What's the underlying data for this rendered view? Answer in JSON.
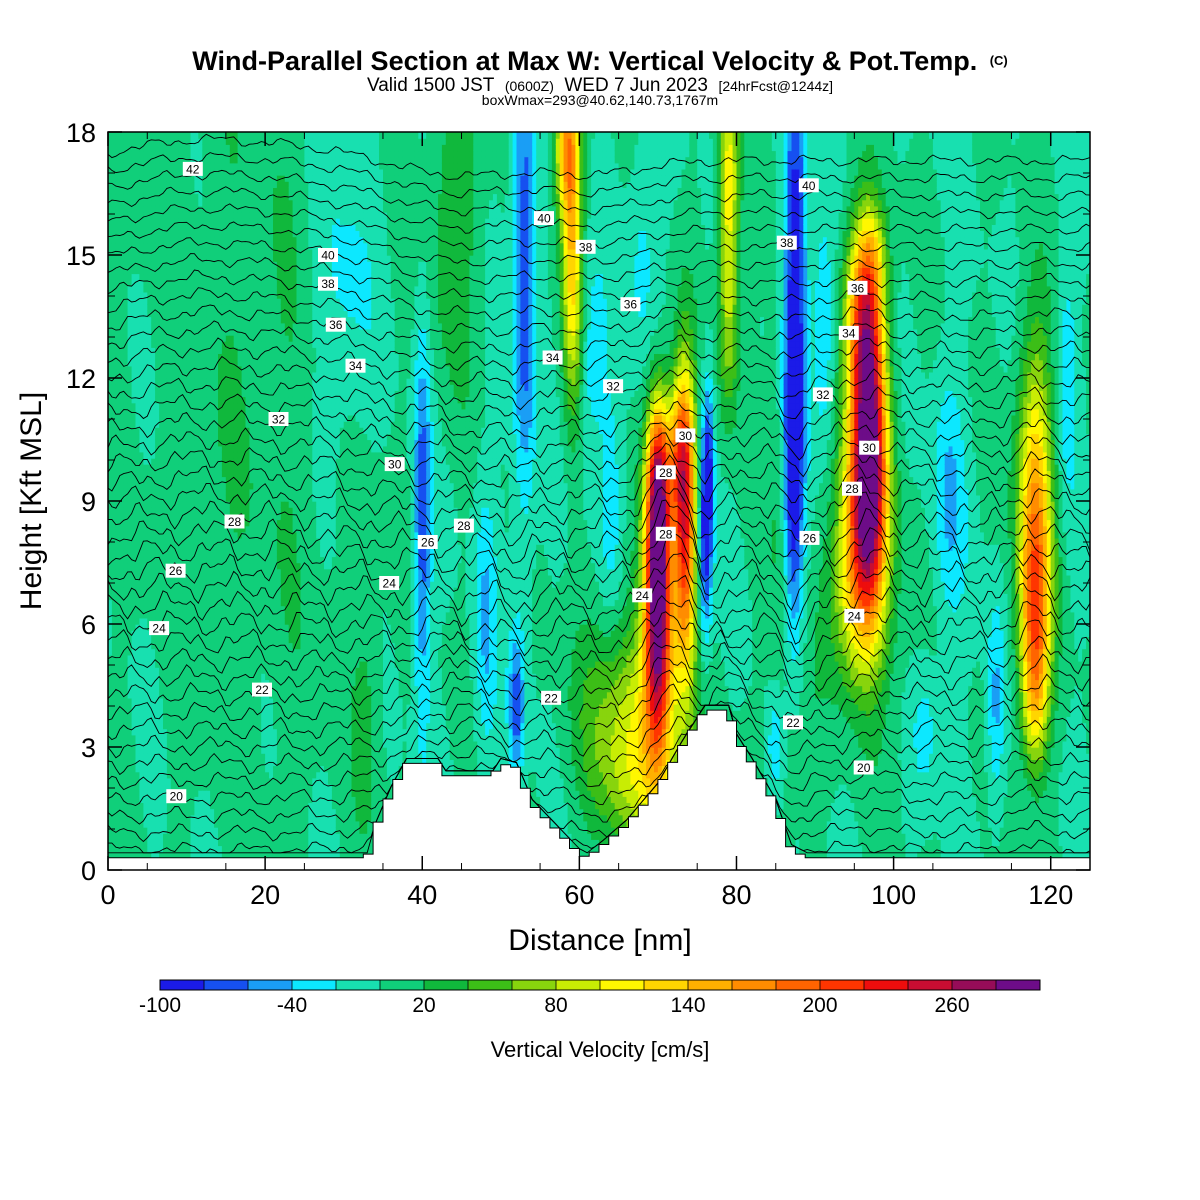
{
  "chart_data": {
    "type": "heatmap",
    "title": "Wind-Parallel Section at Max W: Vertical Velocity & Pot.Temp.",
    "title_mark": "(C)",
    "subtitle": {
      "valid_label": "Valid 1500 JST",
      "zulu": "(0600Z)",
      "date": "WED 7 Jun 2023",
      "forecast": "[24hrFcst@1244z]"
    },
    "box_info": "boxWmax=293@40.62,140.73,1767m",
    "xlabel": "Distance [nm]",
    "ylabel": "Height [Kft MSL]",
    "xlim": [
      0,
      125
    ],
    "ylim": [
      0,
      18
    ],
    "x_ticks": [
      "0",
      "20",
      "40",
      "60",
      "80",
      "100",
      "120"
    ],
    "y_ticks": [
      "0",
      "3",
      "6",
      "9",
      "12",
      "15",
      "18"
    ],
    "colorbar": {
      "label": "Vertical Velocity [cm/s]",
      "tick_labels": [
        "-100",
        "-40",
        "20",
        "80",
        "140",
        "200",
        "260"
      ],
      "colors": [
        "#1b1be8",
        "#1650f0",
        "#1a9ef5",
        "#0ce8ff",
        "#18e0b0",
        "#10cf7a",
        "#10b83c",
        "#3cbe17",
        "#88d40d",
        "#c8ed04",
        "#fff700",
        "#ffd500",
        "#ffb000",
        "#ff8c00",
        "#ff6400",
        "#ff3500",
        "#ee0d0d",
        "#c80d32",
        "#960c58",
        "#6d0c88"
      ]
    },
    "theta_labels": [
      {
        "x": 10.8,
        "y": 17.1,
        "v": "42"
      },
      {
        "x": 28.0,
        "y": 15.0,
        "v": "40"
      },
      {
        "x": 55.5,
        "y": 15.9,
        "v": "40"
      },
      {
        "x": 89.2,
        "y": 16.7,
        "v": "40"
      },
      {
        "x": 28.0,
        "y": 14.3,
        "v": "38"
      },
      {
        "x": 60.8,
        "y": 15.2,
        "v": "38"
      },
      {
        "x": 86.4,
        "y": 15.3,
        "v": "38"
      },
      {
        "x": 29.0,
        "y": 13.3,
        "v": "36"
      },
      {
        "x": 66.5,
        "y": 13.8,
        "v": "36"
      },
      {
        "x": 95.4,
        "y": 14.2,
        "v": "36"
      },
      {
        "x": 31.5,
        "y": 12.3,
        "v": "34"
      },
      {
        "x": 56.6,
        "y": 12.5,
        "v": "34"
      },
      {
        "x": 94.3,
        "y": 13.1,
        "v": "34"
      },
      {
        "x": 21.7,
        "y": 11.0,
        "v": "32"
      },
      {
        "x": 64.3,
        "y": 11.8,
        "v": "32"
      },
      {
        "x": 91.0,
        "y": 11.6,
        "v": "32"
      },
      {
        "x": 36.5,
        "y": 9.9,
        "v": "30"
      },
      {
        "x": 73.5,
        "y": 10.6,
        "v": "30"
      },
      {
        "x": 96.9,
        "y": 10.3,
        "v": "30"
      },
      {
        "x": 16.1,
        "y": 8.5,
        "v": "28"
      },
      {
        "x": 45.3,
        "y": 8.4,
        "v": "28"
      },
      {
        "x": 71.0,
        "y": 9.7,
        "v": "28"
      },
      {
        "x": 71.0,
        "y": 8.2,
        "v": "28"
      },
      {
        "x": 94.7,
        "y": 9.3,
        "v": "28"
      },
      {
        "x": 8.6,
        "y": 7.3,
        "v": "26"
      },
      {
        "x": 40.7,
        "y": 8.0,
        "v": "26"
      },
      {
        "x": 89.3,
        "y": 8.1,
        "v": "26"
      },
      {
        "x": 6.5,
        "y": 5.9,
        "v": "24"
      },
      {
        "x": 35.8,
        "y": 7.0,
        "v": "24"
      },
      {
        "x": 68.0,
        "y": 6.7,
        "v": "24"
      },
      {
        "x": 95.0,
        "y": 6.2,
        "v": "24"
      },
      {
        "x": 19.6,
        "y": 4.4,
        "v": "22"
      },
      {
        "x": 56.4,
        "y": 4.2,
        "v": "22"
      },
      {
        "x": 87.2,
        "y": 3.6,
        "v": "22"
      },
      {
        "x": 8.7,
        "y": 1.8,
        "v": "20"
      },
      {
        "x": 96.2,
        "y": 2.5,
        "v": "20"
      }
    ],
    "terrain": [
      {
        "x": 0,
        "h": 0.3
      },
      {
        "x": 33,
        "h": 0.3
      },
      {
        "x": 34,
        "h": 1.0
      },
      {
        "x": 36,
        "h": 1.9
      },
      {
        "x": 38,
        "h": 2.6
      },
      {
        "x": 42,
        "h": 2.6
      },
      {
        "x": 43,
        "h": 2.3
      },
      {
        "x": 49,
        "h": 2.3
      },
      {
        "x": 50,
        "h": 2.6
      },
      {
        "x": 52,
        "h": 2.5
      },
      {
        "x": 54,
        "h": 1.6
      },
      {
        "x": 58,
        "h": 0.8
      },
      {
        "x": 60,
        "h": 0.4
      },
      {
        "x": 61,
        "h": 0.3
      },
      {
        "x": 63,
        "h": 0.6
      },
      {
        "x": 66,
        "h": 1.1
      },
      {
        "x": 70,
        "h": 2.0
      },
      {
        "x": 73,
        "h": 3.0
      },
      {
        "x": 76,
        "h": 3.9
      },
      {
        "x": 79,
        "h": 3.9
      },
      {
        "x": 80,
        "h": 3.2
      },
      {
        "x": 82,
        "h": 2.6
      },
      {
        "x": 85,
        "h": 1.6
      },
      {
        "x": 87,
        "h": 0.5
      },
      {
        "x": 89,
        "h": 0.3
      },
      {
        "x": 125,
        "h": 0.3
      }
    ]
  }
}
